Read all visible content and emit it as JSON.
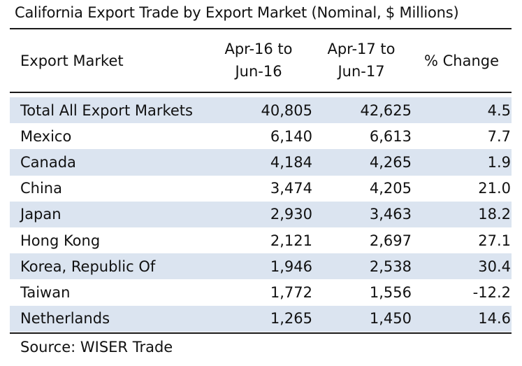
{
  "title": "California Export Trade by Export Market (Nominal, $ Millions)",
  "chart_data": {
    "type": "table",
    "columns": [
      "Export Market",
      "Apr-16 to Jun-16",
      "Apr-17 to Jun-17",
      "% Change"
    ],
    "header": {
      "market": "Export Market",
      "col1_line1": "Apr-16  to",
      "col1_line2": "Jun-16",
      "col2_line1": "Apr-17  to",
      "col2_line2": "Jun-17",
      "col3": "% Change"
    },
    "rows": [
      {
        "market": "Total All Export Markets",
        "apr16_jun16": "40,805",
        "apr17_jun17": "42,625",
        "pct_change": "4.5"
      },
      {
        "market": "Mexico",
        "apr16_jun16": "6,140",
        "apr17_jun17": "6,613",
        "pct_change": "7.7"
      },
      {
        "market": "Canada",
        "apr16_jun16": "4,184",
        "apr17_jun17": "4,265",
        "pct_change": "1.9"
      },
      {
        "market": "China",
        "apr16_jun16": "3,474",
        "apr17_jun17": "4,205",
        "pct_change": "21.0"
      },
      {
        "market": "Japan",
        "apr16_jun16": "2,930",
        "apr17_jun17": "3,463",
        "pct_change": "18.2"
      },
      {
        "market": "Hong Kong",
        "apr16_jun16": "2,121",
        "apr17_jun17": "2,697",
        "pct_change": "27.1"
      },
      {
        "market": "Korea, Republic Of",
        "apr16_jun16": "1,946",
        "apr17_jun17": "2,538",
        "pct_change": "30.4"
      },
      {
        "market": "Taiwan",
        "apr16_jun16": "1,772",
        "apr17_jun17": "1,556",
        "pct_change": "-12.2"
      },
      {
        "market": "Netherlands",
        "apr16_jun16": "1,265",
        "apr17_jun17": "1,450",
        "pct_change": "14.6"
      }
    ],
    "source": "Source: WISER Trade",
    "colors": {
      "shade": "#dbe4f0",
      "rule": "#1a1a1a"
    }
  }
}
